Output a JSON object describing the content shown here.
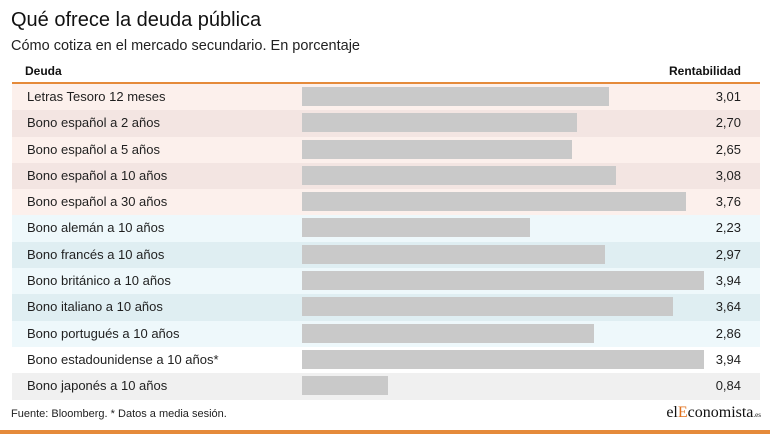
{
  "title": "Qué ofrece la deuda pública",
  "subtitle": "Cómo cotiza en el mercado secundario. En porcentaje",
  "source": "Fuente: Bloomberg. * Datos a media sesión.",
  "logo": {
    "pre": "el",
    "accent": "E",
    "main": "conomista",
    "suffix": ".es"
  },
  "colors": {
    "accent": "#e58a3a",
    "bar": "#c9c9c9",
    "group_es": [
      "#fcf0ec",
      "#f3e5e2"
    ],
    "group_eu": [
      "#eef8fb",
      "#dfeef2"
    ],
    "group_other": [
      "#ffffff",
      "#f0f0f0"
    ]
  },
  "chart_data": {
    "type": "bar",
    "orientation": "horizontal",
    "xlabel": "Deuda",
    "ylabel": "Rentabilidad",
    "xlim": [
      0,
      3.94
    ],
    "rows": [
      {
        "label": "Letras Tesoro 12 meses",
        "value": 3.01,
        "display": "3,01",
        "group": "es"
      },
      {
        "label": "Bono español a 2 años",
        "value": 2.7,
        "display": "2,70",
        "group": "es"
      },
      {
        "label": "Bono español a 5 años",
        "value": 2.65,
        "display": "2,65",
        "group": "es"
      },
      {
        "label": "Bono español a 10 años",
        "value": 3.08,
        "display": "3,08",
        "group": "es"
      },
      {
        "label": "Bono español a 30 años",
        "value": 3.76,
        "display": "3,76",
        "group": "es"
      },
      {
        "label": "Bono alemán a 10 años",
        "value": 2.23,
        "display": "2,23",
        "group": "eu"
      },
      {
        "label": "Bono francés a 10 años",
        "value": 2.97,
        "display": "2,97",
        "group": "eu"
      },
      {
        "label": "Bono británico a 10 años",
        "value": 3.94,
        "display": "3,94",
        "group": "eu"
      },
      {
        "label": "Bono italiano a 10 años",
        "value": 3.64,
        "display": "3,64",
        "group": "eu"
      },
      {
        "label": "Bono portugués a 10 años",
        "value": 2.86,
        "display": "2,86",
        "group": "eu"
      },
      {
        "label": "Bono estadounidense a 10 años*",
        "value": 3.94,
        "display": "3,94",
        "group": "other"
      },
      {
        "label": "Bono japonés a 10 años",
        "value": 0.84,
        "display": "0,84",
        "group": "other"
      }
    ]
  }
}
